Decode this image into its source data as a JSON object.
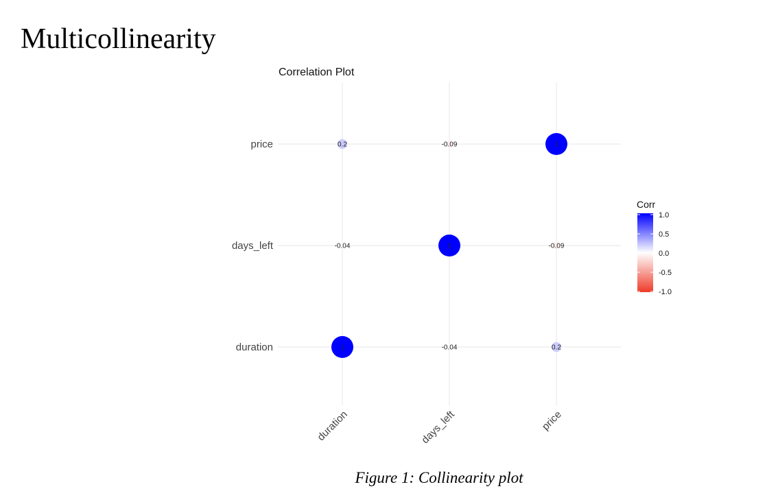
{
  "page": {
    "heading": "Multicollinearity",
    "caption": "Figure 1: Collinearity plot"
  },
  "chart_data": {
    "type": "correlation-circle",
    "title": "Correlation Plot",
    "variables": [
      "duration",
      "days_left",
      "price"
    ],
    "matrix": [
      [
        1,
        -0.04,
        0.2
      ],
      [
        -0.04,
        1,
        -0.09
      ],
      [
        0.2,
        -0.09,
        1
      ]
    ],
    "cell_labels": [
      [
        "1",
        "-0.04",
        "0.2"
      ],
      [
        "-0.04",
        "1",
        "-0.09"
      ],
      [
        "0.2",
        "-0.09",
        "1"
      ]
    ],
    "legend": {
      "title": "Corr",
      "ticks": [
        "1.0",
        "0.5",
        "0.0",
        "-0.5",
        "-1.0"
      ],
      "range": [
        -1,
        1
      ],
      "placement": "right"
    },
    "colors": {
      "positive": "#0000ff",
      "neutral": "#ffffff",
      "negative": "#ee3b2a"
    },
    "x_tick_rotation_deg": 45,
    "grid": true
  }
}
